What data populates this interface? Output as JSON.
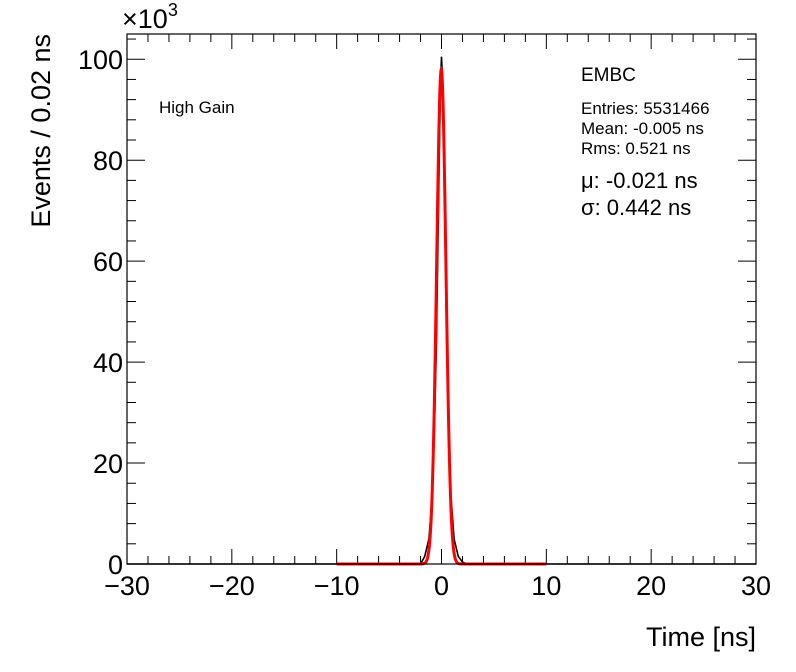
{
  "chart_data": {
    "type": "line",
    "title": "",
    "xlabel": "Time [ns]",
    "ylabel": "Events / 0.02 ns",
    "xlim": [
      -30,
      30
    ],
    "ylim": [
      0,
      105000
    ],
    "x_ticks": [
      -30,
      -20,
      -10,
      0,
      10,
      20,
      30
    ],
    "x_tick_labels": [
      "−30",
      "−20",
      "−10",
      "0",
      "10",
      "20",
      "30"
    ],
    "y_ticks": [
      0,
      20000,
      40000,
      60000,
      80000,
      100000
    ],
    "y_tick_labels": [
      "0",
      "20",
      "40",
      "60",
      "80",
      "100"
    ],
    "y_multiplier": "×10",
    "y_multiplier_exponent": "3",
    "grid": false,
    "annotation_left": "High Gain",
    "stats": {
      "title": "EMBC",
      "entries": "Entries: 5531466",
      "mean": "Mean: -0.005 ns",
      "rms": "Rms: 0.521 ns",
      "fit_mu": "μ: -0.021 ns",
      "fit_sigma": "σ: 0.442 ns"
    },
    "series": [
      {
        "kind": "histogram",
        "color": "#000000",
        "peak_x": 0,
        "peak_y": 100500,
        "x": [
          -1.6,
          -1.2,
          -0.9,
          -0.7,
          -0.5,
          -0.35,
          -0.2,
          -0.1,
          0,
          0.1,
          0.2,
          0.35,
          0.5,
          0.7,
          0.9,
          1.2,
          1.6,
          2.0
        ],
        "y": [
          1500,
          5000,
          13000,
          25000,
          42000,
          62000,
          82000,
          95000,
          100500,
          96000,
          84000,
          64000,
          44000,
          26000,
          13500,
          5000,
          1500,
          400
        ]
      },
      {
        "kind": "gaussian_fit",
        "color": "#ff0000",
        "mu": -0.021,
        "sigma": 0.442,
        "amplitude": 98000,
        "x_range": [
          -10,
          10
        ]
      }
    ]
  }
}
